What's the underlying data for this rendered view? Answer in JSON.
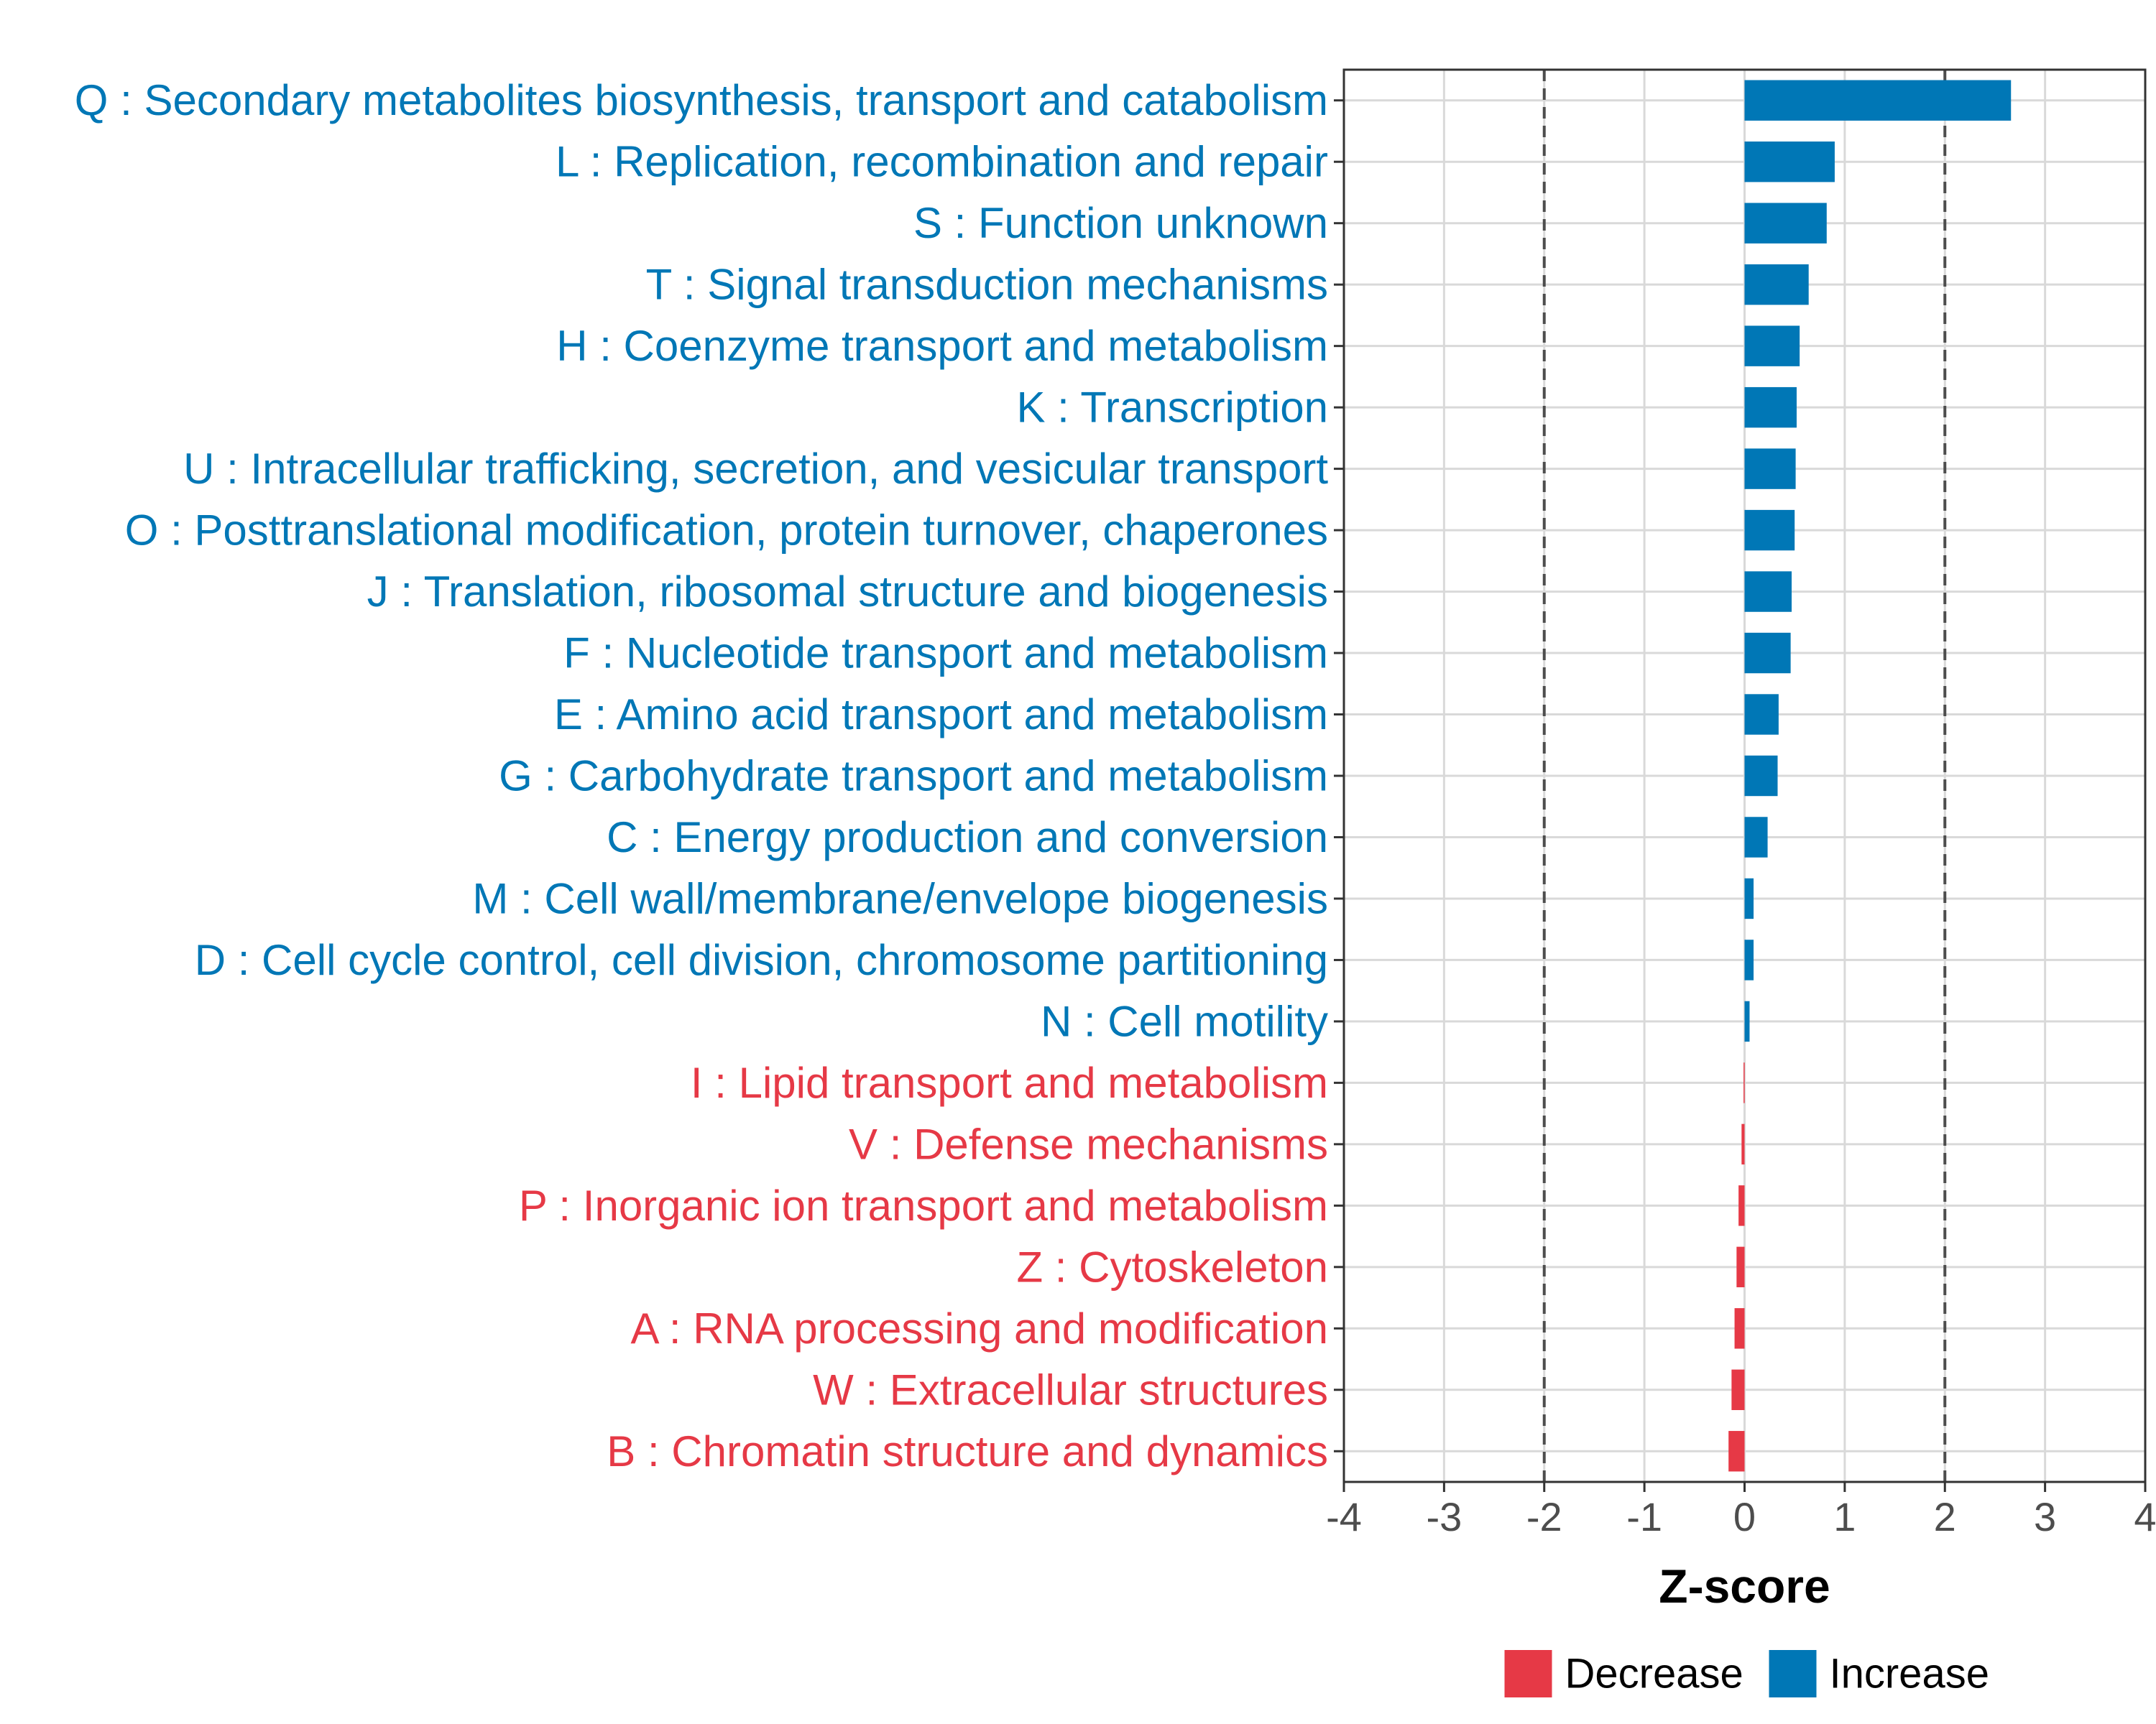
{
  "chart_data": {
    "type": "bar",
    "orientation": "horizontal",
    "xlabel": "Z-score",
    "ylabel": "",
    "xlim": [
      -4,
      4
    ],
    "x_ticks": [
      -4,
      -3,
      -2,
      -1,
      0,
      1,
      2,
      3,
      4
    ],
    "x_tick_labels": [
      "-4",
      "-3",
      "-2",
      "-1",
      "0",
      "1",
      "2",
      "3",
      "4"
    ],
    "reference_lines": [
      -2,
      2
    ],
    "grid": true,
    "categories": [
      "Q : Secondary metabolites biosynthesis, transport and catabolism",
      "L : Replication, recombination and repair",
      "S : Function unknown",
      "T : Signal transduction mechanisms",
      "H : Coenzyme transport and metabolism",
      "K : Transcription",
      "U : Intracellular trafficking, secretion, and vesicular transport",
      "O : Posttranslational modification, protein turnover, chaperones",
      "J : Translation, ribosomal structure and biogenesis",
      "F : Nucleotide transport and metabolism",
      "E : Amino acid transport and metabolism",
      "G : Carbohydrate transport and metabolism",
      "C : Energy production and conversion",
      "M : Cell wall/membrane/envelope biogenesis",
      "D : Cell cycle control, cell division, chromosome partitioning",
      "N : Cell motility",
      "I : Lipid transport and metabolism",
      "V : Defense mechanisms",
      "P : Inorganic ion transport and metabolism",
      "Z : Cytoskeleton",
      "A : RNA processing and modification",
      "W : Extracellular structures",
      "B : Chromatin structure and dynamics"
    ],
    "values": [
      2.66,
      0.9,
      0.82,
      0.64,
      0.55,
      0.52,
      0.51,
      0.5,
      0.47,
      0.46,
      0.34,
      0.33,
      0.23,
      0.09,
      0.09,
      0.05,
      -0.01,
      -0.03,
      -0.06,
      -0.08,
      -0.1,
      -0.13,
      -0.16
    ],
    "groups": [
      "Increase",
      "Increase",
      "Increase",
      "Increase",
      "Increase",
      "Increase",
      "Increase",
      "Increase",
      "Increase",
      "Increase",
      "Increase",
      "Increase",
      "Increase",
      "Increase",
      "Increase",
      "Increase",
      "Decrease",
      "Decrease",
      "Decrease",
      "Decrease",
      "Decrease",
      "Decrease",
      "Decrease"
    ],
    "legend": {
      "position": "bottom",
      "items": [
        {
          "label": "Decrease",
          "color": "#e63946"
        },
        {
          "label": "Increase",
          "color": "#0077b6"
        }
      ]
    }
  },
  "colors": {
    "increase": "#0077b6",
    "decrease": "#e63946",
    "grid": "#d9d9d9",
    "reference_line": "#4d4d4d",
    "panel_border": "#333333"
  }
}
